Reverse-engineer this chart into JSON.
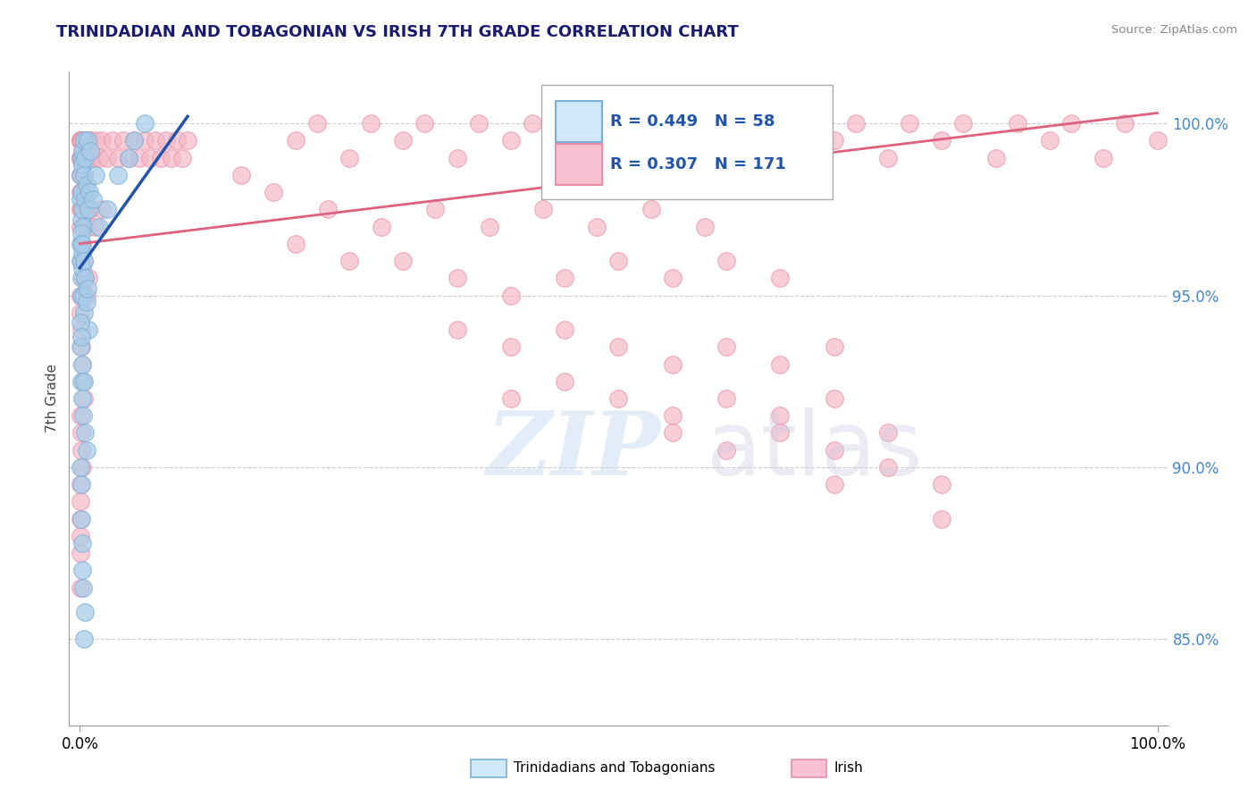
{
  "title": "TRINIDADIAN AND TOBAGONIAN VS IRISH 7TH GRADE CORRELATION CHART",
  "source": "Source: ZipAtlas.com",
  "ylabel": "7th Grade",
  "legend_blue_label": "Trinidadians and Tobagonians",
  "legend_pink_label": "Irish",
  "R_blue": 0.449,
  "N_blue": 58,
  "R_pink": 0.307,
  "N_pink": 171,
  "blue_color": "#a8cce8",
  "blue_edge_color": "#7ab0d8",
  "pink_color": "#f4b8c8",
  "pink_edge_color": "#e890a8",
  "blue_line_color": "#2255aa",
  "pink_line_color": "#e06080",
  "xlim": [
    -1.0,
    101.0
  ],
  "ylim": [
    82.5,
    101.5
  ],
  "xaxis_ticks": [
    0.0,
    100.0
  ],
  "yaxis_ticks": [
    85.0,
    90.0,
    95.0,
    100.0
  ],
  "blue_trend_x": [
    0.0,
    10.0
  ],
  "blue_trend_y": [
    95.8,
    100.2
  ],
  "pink_trend_x": [
    0.0,
    100.0
  ],
  "pink_trend_y": [
    96.5,
    100.3
  ],
  "blue_scatter": [
    [
      0.05,
      97.8
    ],
    [
      0.08,
      98.5
    ],
    [
      0.1,
      99.0
    ],
    [
      0.12,
      97.2
    ],
    [
      0.15,
      98.0
    ],
    [
      0.18,
      97.5
    ],
    [
      0.2,
      98.8
    ],
    [
      0.25,
      99.2
    ],
    [
      0.3,
      97.0
    ],
    [
      0.35,
      98.5
    ],
    [
      0.4,
      99.5
    ],
    [
      0.45,
      97.8
    ],
    [
      0.5,
      99.0
    ],
    [
      0.6,
      98.2
    ],
    [
      0.7,
      99.5
    ],
    [
      0.8,
      97.5
    ],
    [
      0.9,
      98.0
    ],
    [
      1.0,
      99.2
    ],
    [
      1.2,
      97.8
    ],
    [
      1.5,
      98.5
    ],
    [
      0.05,
      96.5
    ],
    [
      0.08,
      96.0
    ],
    [
      0.1,
      95.5
    ],
    [
      0.12,
      96.8
    ],
    [
      0.15,
      95.0
    ],
    [
      0.18,
      96.2
    ],
    [
      0.2,
      95.8
    ],
    [
      0.25,
      96.5
    ],
    [
      0.3,
      95.0
    ],
    [
      0.35,
      96.0
    ],
    [
      0.4,
      94.5
    ],
    [
      0.5,
      95.5
    ],
    [
      0.6,
      94.8
    ],
    [
      0.7,
      95.2
    ],
    [
      0.8,
      94.0
    ],
    [
      0.05,
      94.2
    ],
    [
      0.08,
      93.5
    ],
    [
      0.1,
      93.8
    ],
    [
      0.15,
      92.5
    ],
    [
      0.2,
      93.0
    ],
    [
      0.25,
      92.0
    ],
    [
      0.3,
      91.5
    ],
    [
      0.4,
      92.5
    ],
    [
      0.5,
      91.0
    ],
    [
      0.6,
      90.5
    ],
    [
      0.08,
      90.0
    ],
    [
      0.1,
      89.5
    ],
    [
      0.15,
      88.5
    ],
    [
      0.2,
      87.8
    ],
    [
      0.25,
      87.0
    ],
    [
      0.3,
      86.5
    ],
    [
      0.5,
      85.8
    ],
    [
      0.4,
      85.0
    ],
    [
      2.5,
      97.5
    ],
    [
      3.5,
      98.5
    ],
    [
      4.5,
      99.0
    ],
    [
      5.0,
      99.5
    ],
    [
      6.0,
      100.0
    ],
    [
      1.8,
      97.0
    ]
  ],
  "pink_scatter": [
    [
      0.02,
      99.5
    ],
    [
      0.03,
      99.0
    ],
    [
      0.05,
      99.5
    ],
    [
      0.07,
      99.0
    ],
    [
      0.08,
      99.5
    ],
    [
      0.1,
      98.5
    ],
    [
      0.12,
      99.0
    ],
    [
      0.15,
      99.5
    ],
    [
      0.18,
      98.8
    ],
    [
      0.2,
      99.2
    ],
    [
      0.25,
      99.5
    ],
    [
      0.3,
      99.0
    ],
    [
      0.35,
      99.5
    ],
    [
      0.4,
      98.5
    ],
    [
      0.5,
      99.0
    ],
    [
      0.6,
      99.5
    ],
    [
      0.7,
      99.0
    ],
    [
      0.8,
      99.5
    ],
    [
      0.9,
      99.0
    ],
    [
      1.0,
      99.5
    ],
    [
      1.2,
      99.0
    ],
    [
      1.5,
      99.5
    ],
    [
      1.8,
      99.0
    ],
    [
      2.0,
      99.5
    ],
    [
      2.5,
      99.0
    ],
    [
      3.0,
      99.5
    ],
    [
      3.5,
      99.0
    ],
    [
      4.0,
      99.5
    ],
    [
      4.5,
      99.0
    ],
    [
      5.0,
      99.5
    ],
    [
      5.5,
      99.0
    ],
    [
      6.0,
      99.5
    ],
    [
      6.5,
      99.0
    ],
    [
      7.0,
      99.5
    ],
    [
      7.5,
      99.0
    ],
    [
      8.0,
      99.5
    ],
    [
      8.5,
      99.0
    ],
    [
      9.0,
      99.5
    ],
    [
      9.5,
      99.0
    ],
    [
      10.0,
      99.5
    ],
    [
      0.03,
      98.0
    ],
    [
      0.05,
      98.5
    ],
    [
      0.08,
      97.5
    ],
    [
      0.1,
      98.0
    ],
    [
      0.15,
      97.5
    ],
    [
      0.2,
      98.0
    ],
    [
      0.25,
      97.5
    ],
    [
      0.3,
      98.0
    ],
    [
      0.4,
      97.5
    ],
    [
      0.5,
      98.0
    ],
    [
      0.6,
      97.5
    ],
    [
      0.8,
      97.0
    ],
    [
      1.0,
      97.5
    ],
    [
      1.5,
      97.0
    ],
    [
      2.0,
      97.5
    ],
    [
      0.05,
      97.0
    ],
    [
      0.1,
      96.5
    ],
    [
      0.15,
      96.0
    ],
    [
      0.2,
      96.5
    ],
    [
      0.3,
      95.5
    ],
    [
      0.4,
      96.0
    ],
    [
      0.5,
      95.5
    ],
    [
      0.6,
      95.0
    ],
    [
      0.8,
      95.5
    ],
    [
      0.02,
      95.0
    ],
    [
      0.05,
      94.5
    ],
    [
      0.1,
      94.0
    ],
    [
      0.15,
      93.5
    ],
    [
      0.2,
      93.0
    ],
    [
      0.3,
      92.5
    ],
    [
      0.4,
      92.0
    ],
    [
      0.05,
      91.5
    ],
    [
      0.1,
      91.0
    ],
    [
      0.15,
      90.5
    ],
    [
      0.2,
      90.0
    ],
    [
      0.05,
      89.5
    ],
    [
      0.08,
      89.0
    ],
    [
      0.03,
      88.5
    ],
    [
      0.05,
      88.0
    ],
    [
      0.02,
      87.5
    ],
    [
      20.0,
      99.5
    ],
    [
      25.0,
      99.0
    ],
    [
      30.0,
      99.5
    ],
    [
      35.0,
      99.0
    ],
    [
      40.0,
      99.5
    ],
    [
      45.0,
      99.0
    ],
    [
      50.0,
      99.5
    ],
    [
      55.0,
      99.0
    ],
    [
      60.0,
      99.5
    ],
    [
      65.0,
      99.0
    ],
    [
      70.0,
      99.5
    ],
    [
      75.0,
      99.0
    ],
    [
      80.0,
      99.5
    ],
    [
      85.0,
      99.0
    ],
    [
      90.0,
      99.5
    ],
    [
      95.0,
      99.0
    ],
    [
      100.0,
      99.5
    ],
    [
      22.0,
      100.0
    ],
    [
      27.0,
      100.0
    ],
    [
      32.0,
      100.0
    ],
    [
      37.0,
      100.0
    ],
    [
      42.0,
      100.0
    ],
    [
      47.0,
      100.0
    ],
    [
      52.0,
      100.0
    ],
    [
      57.0,
      100.0
    ],
    [
      62.0,
      100.0
    ],
    [
      67.0,
      100.0
    ],
    [
      72.0,
      100.0
    ],
    [
      77.0,
      100.0
    ],
    [
      82.0,
      100.0
    ],
    [
      87.0,
      100.0
    ],
    [
      92.0,
      100.0
    ],
    [
      97.0,
      100.0
    ],
    [
      15.0,
      98.5
    ],
    [
      18.0,
      98.0
    ],
    [
      23.0,
      97.5
    ],
    [
      28.0,
      97.0
    ],
    [
      33.0,
      97.5
    ],
    [
      38.0,
      97.0
    ],
    [
      43.0,
      97.5
    ],
    [
      48.0,
      97.0
    ],
    [
      53.0,
      97.5
    ],
    [
      58.0,
      97.0
    ],
    [
      30.0,
      96.0
    ],
    [
      35.0,
      95.5
    ],
    [
      40.0,
      95.0
    ],
    [
      45.0,
      95.5
    ],
    [
      50.0,
      96.0
    ],
    [
      20.0,
      96.5
    ],
    [
      25.0,
      96.0
    ],
    [
      55.0,
      95.5
    ],
    [
      60.0,
      96.0
    ],
    [
      65.0,
      95.5
    ],
    [
      35.0,
      94.0
    ],
    [
      40.0,
      93.5
    ],
    [
      45.0,
      94.0
    ],
    [
      50.0,
      93.5
    ],
    [
      55.0,
      93.0
    ],
    [
      60.0,
      93.5
    ],
    [
      65.0,
      93.0
    ],
    [
      70.0,
      93.5
    ],
    [
      40.0,
      92.0
    ],
    [
      45.0,
      92.5
    ],
    [
      50.0,
      92.0
    ],
    [
      55.0,
      91.5
    ],
    [
      60.0,
      92.0
    ],
    [
      65.0,
      91.5
    ],
    [
      70.0,
      92.0
    ],
    [
      55.0,
      91.0
    ],
    [
      60.0,
      90.5
    ],
    [
      65.0,
      91.0
    ],
    [
      70.0,
      90.5
    ],
    [
      75.0,
      91.0
    ],
    [
      70.0,
      89.5
    ],
    [
      75.0,
      90.0
    ],
    [
      80.0,
      89.5
    ],
    [
      0.02,
      86.5
    ],
    [
      80.0,
      88.5
    ]
  ]
}
